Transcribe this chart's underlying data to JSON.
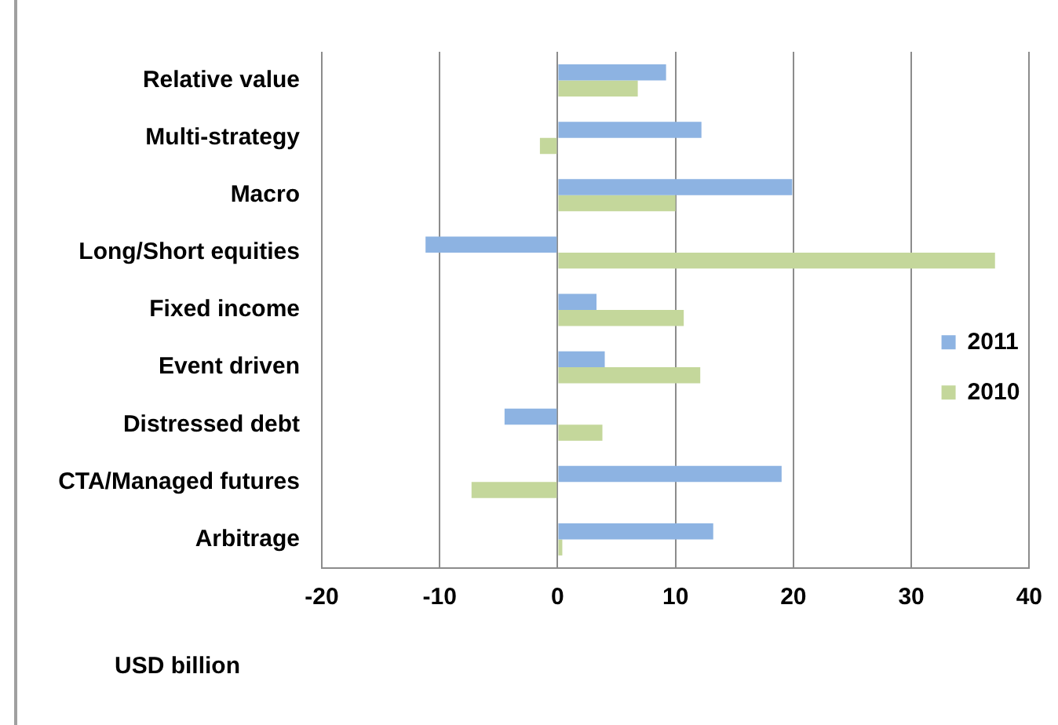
{
  "chart_data": {
    "type": "bar",
    "orientation": "horizontal",
    "categories": [
      "Relative value",
      "Multi-strategy",
      "Macro",
      "Long/Short equities",
      "Fixed income",
      "Event driven",
      "Distressed debt",
      "CTA/Managed futures",
      "Arbitrage"
    ],
    "series": [
      {
        "name": "2011",
        "color": "#8db3e2",
        "values": [
          9.2,
          12.2,
          19.9,
          -11.2,
          3.3,
          4.0,
          -4.5,
          19.0,
          13.2
        ]
      },
      {
        "name": "2010",
        "color": "#c4d79b",
        "values": [
          6.8,
          -1.5,
          10.0,
          37.1,
          10.7,
          12.1,
          3.8,
          -7.3,
          0.4
        ]
      }
    ],
    "xlabel": "USD billion",
    "xlim": [
      -20,
      40
    ],
    "xticks": [
      -20,
      -10,
      0,
      10,
      20,
      30,
      40
    ],
    "grid": "x",
    "legend": "right"
  }
}
